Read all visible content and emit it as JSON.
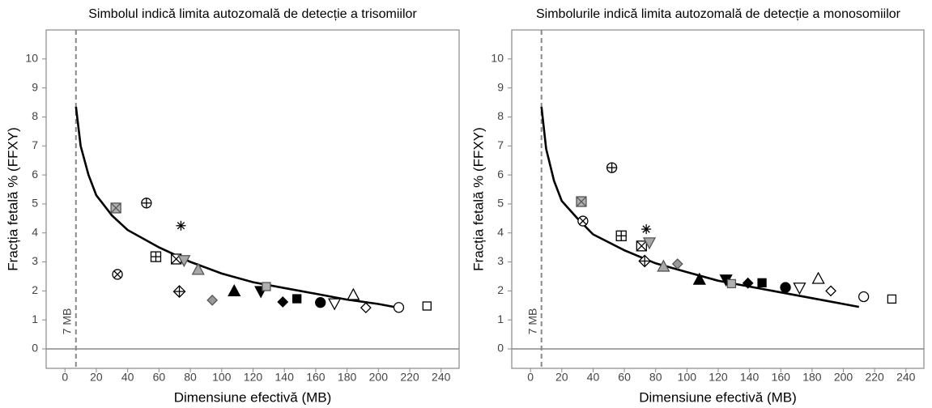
{
  "chart_data": [
    {
      "type": "scatter",
      "title": "Simbolul indică limita autozomală de detecție a trisomiilor",
      "x_label": "Dimensiune efectivă (MB)",
      "y_label": "Fracția fetală % (FFXY)",
      "xlim": [
        -12,
        251.5
      ],
      "ylim": [
        -0.67,
        11
      ],
      "xticks": [
        0,
        20,
        40,
        60,
        80,
        100,
        120,
        140,
        160,
        180,
        200,
        220,
        240
      ],
      "yticks": [
        0,
        1,
        2,
        3,
        4,
        5,
        6,
        7,
        8,
        9,
        10
      ],
      "reference_line": {
        "x": 7,
        "label": "7 MB"
      },
      "reference_hline": 0,
      "curve": {
        "color": "#000000",
        "x": [
          7,
          10,
          15,
          20,
          30,
          40,
          60,
          80,
          100,
          120,
          140,
          160,
          180,
          200,
          210
        ],
        "values": [
          8.35,
          7.0,
          6.0,
          5.3,
          4.6,
          4.1,
          3.5,
          3.0,
          2.6,
          2.3,
          2.1,
          1.9,
          1.7,
          1.55,
          1.45
        ]
      },
      "points": {
        "x": [
          32.5,
          52,
          74,
          33.5,
          58,
          71,
          76,
          85,
          73,
          94,
          108,
          125,
          128.5,
          139,
          148,
          163,
          172,
          184,
          192,
          213,
          231
        ],
        "values": [
          4.86,
          5.03,
          4.25,
          2.57,
          3.18,
          3.1,
          3.05,
          2.74,
          1.98,
          1.68,
          2.0,
          1.98,
          2.15,
          1.62,
          1.73,
          1.6,
          1.56,
          1.87,
          1.42,
          1.43,
          1.48
        ],
        "markers": [
          "square-x",
          "circle-plus",
          "asterisk",
          "circle-x",
          "square-plus",
          "square-x",
          "triangle-down",
          "triangle-up",
          "diamond-plus",
          "diamond",
          "triangle-up",
          "triangle-down",
          "square",
          "diamond",
          "square",
          "circle",
          "triangle-down",
          "triangle-up",
          "diamond",
          "circle",
          "square"
        ],
        "fills": [
          "#b0b0b0",
          "#ffffff",
          "#000000",
          "#ffffff",
          "#ffffff",
          "#ffffff",
          "#a8a8a8",
          "#a8a8a8",
          "#ffffff",
          "#999999",
          "#000000",
          "#000000",
          "#b0b0b0",
          "#000000",
          "#000000",
          "#000000",
          "#ffffff",
          "#ffffff",
          "#ffffff",
          "#ffffff",
          "#ffffff"
        ]
      }
    },
    {
      "type": "scatter",
      "title": "Simbolurile indică limita autozomală de detecție a monosomiilor",
      "x_label": "Dimensiune efectivă (MB)",
      "y_label": "Fracția fetală % (FFXY)",
      "xlim": [
        -12,
        251.5
      ],
      "ylim": [
        -0.67,
        11
      ],
      "xticks": [
        0,
        20,
        40,
        60,
        80,
        100,
        120,
        140,
        160,
        180,
        200,
        220,
        240
      ],
      "yticks": [
        0,
        1,
        2,
        3,
        4,
        5,
        6,
        7,
        8,
        9,
        10
      ],
      "reference_line": {
        "x": 7,
        "label": "7 MB"
      },
      "reference_hline": 0,
      "curve": {
        "color": "#000000",
        "x": [
          7,
          10,
          15,
          20,
          30,
          40,
          60,
          80,
          100,
          120,
          140,
          160,
          180,
          200,
          210
        ],
        "values": [
          8.35,
          6.9,
          5.8,
          5.1,
          4.5,
          3.95,
          3.4,
          2.95,
          2.65,
          2.35,
          2.15,
          1.95,
          1.75,
          1.55,
          1.45
        ]
      },
      "points": {
        "x": [
          32.5,
          52,
          74,
          33.5,
          58,
          71,
          76,
          85,
          73,
          94,
          108,
          125,
          128.5,
          139,
          148,
          163,
          172,
          184,
          192,
          213,
          231
        ],
        "values": [
          5.08,
          6.25,
          4.13,
          4.41,
          3.9,
          3.55,
          3.66,
          2.85,
          3.03,
          2.93,
          2.4,
          2.38,
          2.25,
          2.27,
          2.28,
          2.12,
          2.1,
          2.43,
          2.0,
          1.8,
          1.72
        ],
        "markers": [
          "square-x",
          "circle-plus",
          "asterisk",
          "circle-x",
          "square-plus",
          "square-x",
          "triangle-down",
          "triangle-up",
          "diamond-plus",
          "diamond",
          "triangle-up",
          "triangle-down",
          "square",
          "diamond",
          "square",
          "circle",
          "triangle-down",
          "triangle-up",
          "diamond",
          "circle",
          "square"
        ],
        "fills": [
          "#b0b0b0",
          "#ffffff",
          "#000000",
          "#ffffff",
          "#ffffff",
          "#ffffff",
          "#a8a8a8",
          "#a8a8a8",
          "#ffffff",
          "#999999",
          "#000000",
          "#000000",
          "#b0b0b0",
          "#000000",
          "#000000",
          "#000000",
          "#ffffff",
          "#ffffff",
          "#ffffff",
          "#ffffff",
          "#ffffff"
        ]
      }
    }
  ]
}
